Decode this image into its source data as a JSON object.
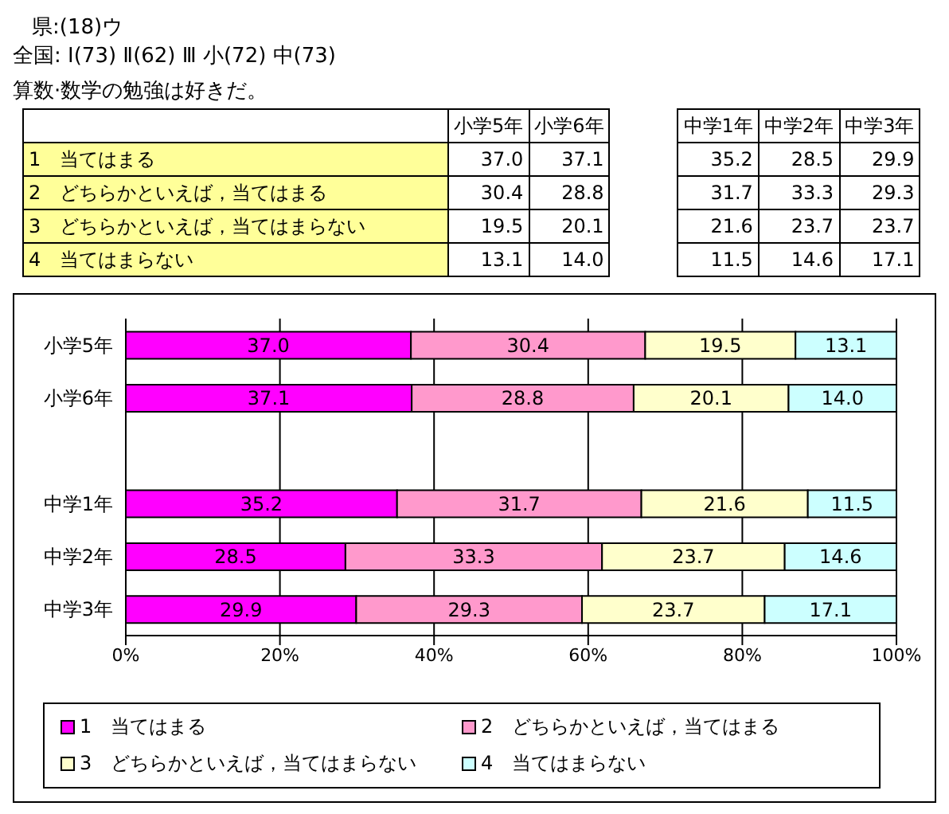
{
  "chart_data": {
    "type": "bar",
    "orientation": "horizontal",
    "stacked": true,
    "title": "県:(18)ウ",
    "subtitle": "全国: Ⅰ(73) Ⅱ(62) Ⅲ 小(72) 中(73)",
    "annotations": [
      "算数·数学の勉強は好きだ。"
    ],
    "categories": [
      "小学5年",
      "小学6年",
      null,
      "中学1年",
      "中学2年",
      "中学3年"
    ],
    "series": [
      {
        "name": "1　当てはまる",
        "color": "#ff00ff",
        "values": [
          37.0,
          37.1,
          null,
          35.2,
          28.5,
          29.9
        ],
        "value_labels": [
          "37.0",
          "37.1",
          null,
          "35.2",
          "28.5",
          "29.9"
        ]
      },
      {
        "name": "2　どちらかといえば，当てはまる",
        "color": "#ff99cc",
        "values": [
          30.4,
          28.8,
          null,
          31.7,
          33.3,
          29.3
        ],
        "value_labels": [
          "30.4",
          "28.8",
          null,
          "31.7",
          "33.3",
          "29.3"
        ]
      },
      {
        "name": "3　どちらかといえば，当てはまらない",
        "color": "#ffffcc",
        "values": [
          19.5,
          20.1,
          null,
          21.6,
          23.7,
          23.7
        ],
        "value_labels": [
          "19.5",
          "20.1",
          null,
          "21.6",
          "23.7",
          "23.7"
        ]
      },
      {
        "name": "4　当てはまらない",
        "color": "#ccffff",
        "values": [
          13.1,
          14.0,
          null,
          11.5,
          14.6,
          17.1
        ],
        "value_labels": [
          "13.1",
          "14.0",
          null,
          "11.5",
          "14.6",
          "17.1"
        ]
      }
    ],
    "xlim": [
      0,
      100
    ],
    "xticks": [
      {
        "value": 0,
        "label": "0%"
      },
      {
        "value": 20,
        "label": "20%"
      },
      {
        "value": 40,
        "label": "40%"
      },
      {
        "value": 60,
        "label": "60%"
      },
      {
        "value": 80,
        "label": "80%"
      },
      {
        "value": 100,
        "label": "100%"
      }
    ],
    "grid": "x",
    "legend": "bottom"
  }
}
